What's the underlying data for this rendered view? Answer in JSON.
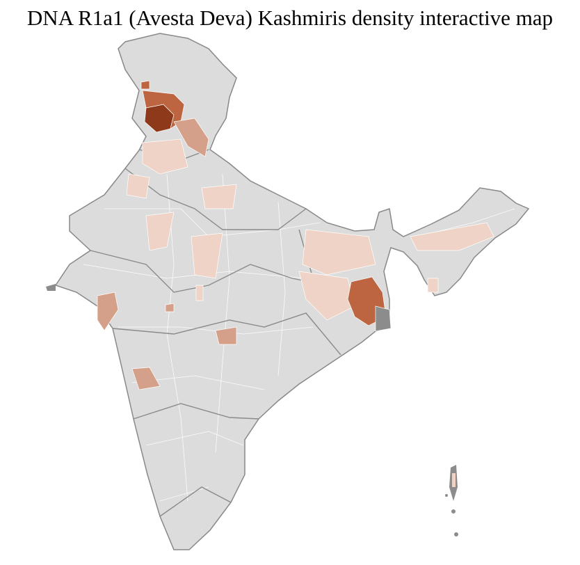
{
  "title": "DNA R1a1 (Avesta Deva) Kashmiris density interactive map",
  "map": {
    "region": "India",
    "color_scale": {
      "none": "#dcdcdc",
      "low": "#eed3c6",
      "medium": "#d4a089",
      "high": "#bd6440",
      "very_high": "#8e3a1a",
      "no_data": "#8c8c8c"
    }
  }
}
